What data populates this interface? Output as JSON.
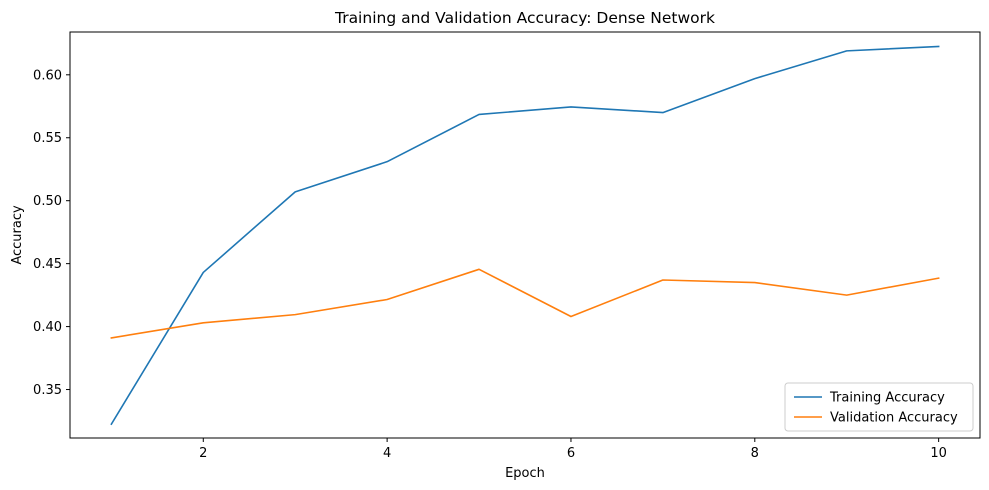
{
  "chart_data": {
    "type": "line",
    "title": "Training and Validation Accuracy: Dense Network",
    "xlabel": "Epoch",
    "ylabel": "Accuracy",
    "x": [
      1,
      2,
      3,
      4,
      5,
      6,
      7,
      8,
      9,
      10
    ],
    "xlim": [
      0.55,
      10.45
    ],
    "ylim": [
      0.3115,
      0.634
    ],
    "xticks": [
      2,
      4,
      6,
      8,
      10
    ],
    "yticks": [
      0.35,
      0.4,
      0.45,
      0.5,
      0.55,
      0.6
    ],
    "ytick_labels": [
      "0.35",
      "0.40",
      "0.45",
      "0.50",
      "0.55",
      "0.60"
    ],
    "grid": false,
    "legend_position": "bottom-right",
    "series": [
      {
        "name": "Training Accuracy",
        "color": "#1f77b4",
        "values": [
          0.3225,
          0.443,
          0.507,
          0.531,
          0.5685,
          0.5745,
          0.57,
          0.597,
          0.619,
          0.6225
        ]
      },
      {
        "name": "Validation Accuracy",
        "color": "#ff7f0e",
        "values": [
          0.391,
          0.403,
          0.4095,
          0.4215,
          0.4455,
          0.408,
          0.437,
          0.435,
          0.425,
          0.4385
        ]
      }
    ]
  }
}
